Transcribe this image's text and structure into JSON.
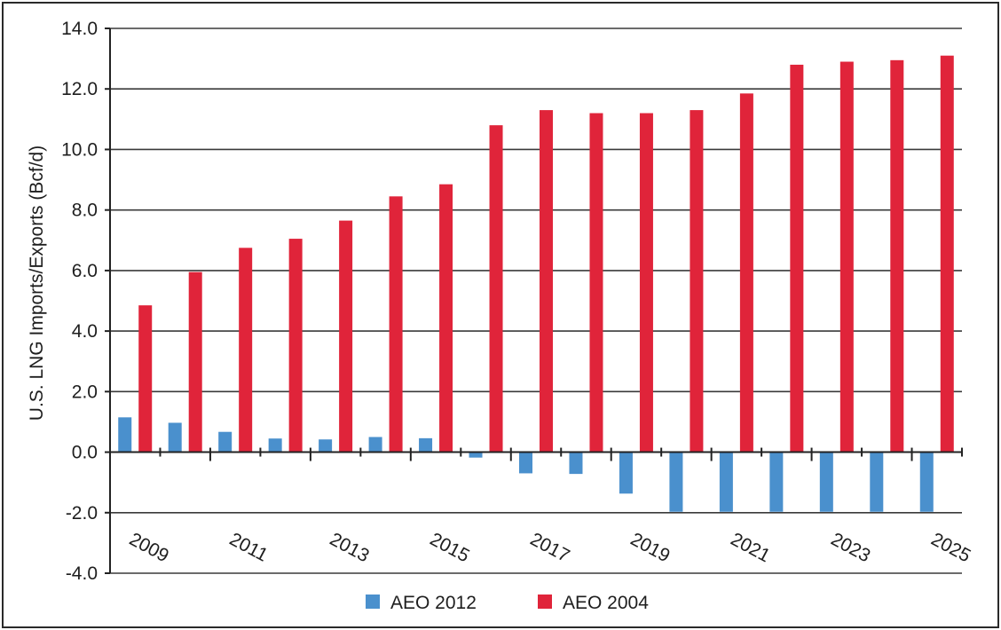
{
  "chart_data": {
    "type": "bar",
    "title": "",
    "xlabel": "",
    "ylabel": "U.S. LNG Imports/Exports (Bcf/d)",
    "ylim": [
      -4,
      14
    ],
    "yticks": [
      "14.0",
      "12.0",
      "10.0",
      "8.0",
      "6.0",
      "4.0",
      "2.0",
      "0.0",
      "-2.0",
      "-4.0"
    ],
    "ytick_values": [
      14,
      12,
      10,
      8,
      6,
      4,
      2,
      0,
      -2,
      -4
    ],
    "categories": [
      "2009",
      "2010",
      "2011",
      "2012",
      "2013",
      "2014",
      "2015",
      "2016",
      "2017",
      "2018",
      "2019",
      "2020",
      "2021",
      "2022",
      "2023",
      "2024",
      "2025"
    ],
    "xtick_labels_shown": [
      "2009",
      "2011",
      "2013",
      "2015",
      "2017",
      "2019",
      "2021",
      "2023",
      "2025"
    ],
    "grid": true,
    "legend_position": "bottom",
    "series": [
      {
        "name": "AEO 2012",
        "color": "#4a90cd",
        "values": [
          1.15,
          0.97,
          0.67,
          0.45,
          0.42,
          0.5,
          0.46,
          -0.18,
          -0.7,
          -0.72,
          -1.37,
          -1.97,
          -1.97,
          -1.97,
          -1.97,
          -1.97,
          -1.97
        ]
      },
      {
        "name": "AEO 2004",
        "color": "#e0243a",
        "values": [
          4.85,
          5.95,
          6.75,
          7.05,
          7.65,
          8.45,
          8.85,
          10.8,
          11.3,
          11.2,
          11.2,
          11.3,
          11.85,
          12.8,
          12.9,
          12.95,
          13.1
        ]
      }
    ]
  }
}
